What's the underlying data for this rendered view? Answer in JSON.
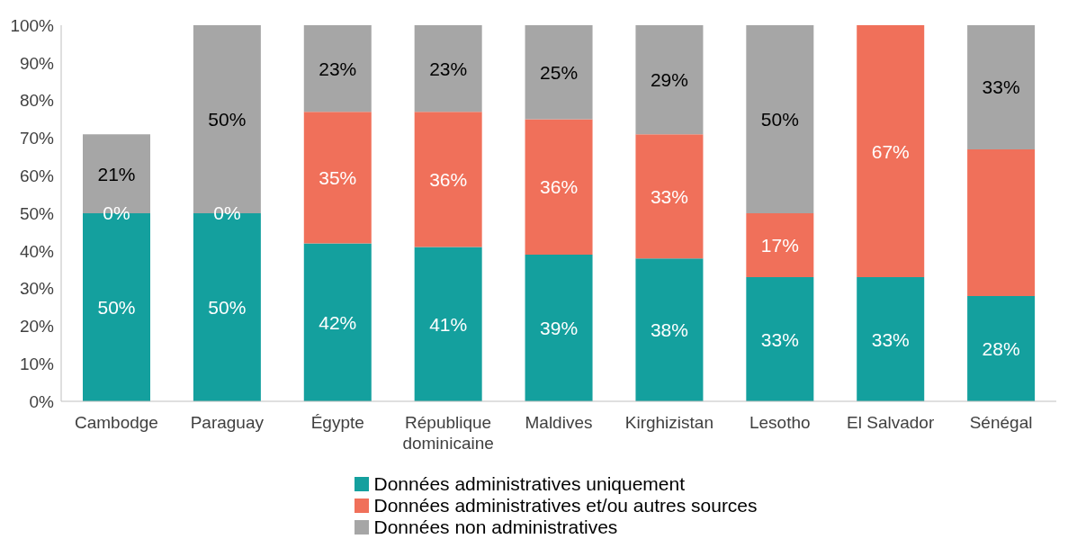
{
  "chart_data": {
    "type": "bar",
    "stacked": true,
    "categories": [
      "Cambodge",
      "Paraguay",
      "Égypte",
      "République dominicaine",
      "Maldives",
      "Kirghizistan",
      "Lesotho",
      "El Salvador",
      "Sénégal"
    ],
    "series": [
      {
        "name": "Données administratives uniquement",
        "color": "#14a09e",
        "values": [
          50,
          50,
          42,
          41,
          39,
          38,
          33,
          33,
          28
        ],
        "value_labels": [
          "50%",
          "50%",
          "42%",
          "41%",
          "39%",
          "38%",
          "33%",
          "33%",
          "28%"
        ]
      },
      {
        "name": "Données administratives et/ou autres sources",
        "color": "#f0705a",
        "values": [
          0,
          0,
          35,
          36,
          36,
          33,
          17,
          67,
          39
        ],
        "value_labels": [
          "0%",
          "0%",
          "35%",
          "36%",
          "36%",
          "33%",
          "17%",
          "67%",
          null
        ]
      },
      {
        "name": "Données non administratives",
        "color": "#a6a6a6",
        "values": [
          21,
          50,
          23,
          23,
          25,
          29,
          50,
          0,
          33
        ],
        "value_labels": [
          "21%",
          "50%",
          "23%",
          "23%",
          "25%",
          "29%",
          "50%",
          null,
          "33%"
        ]
      }
    ],
    "ylim": [
      0,
      100
    ],
    "yticks": [
      {
        "value": 0,
        "label": "0%"
      },
      {
        "value": 10,
        "label": "10%"
      },
      {
        "value": 20,
        "label": "20%"
      },
      {
        "value": 30,
        "label": "30%"
      },
      {
        "value": 40,
        "label": "40%"
      },
      {
        "value": 50,
        "label": "50%"
      },
      {
        "value": 60,
        "label": "60%"
      },
      {
        "value": 70,
        "label": "70%"
      },
      {
        "value": 80,
        "label": "80%"
      },
      {
        "value": 90,
        "label": "90%"
      },
      {
        "value": 100,
        "label": "100%"
      }
    ],
    "grid": false,
    "legend": "bottom"
  }
}
